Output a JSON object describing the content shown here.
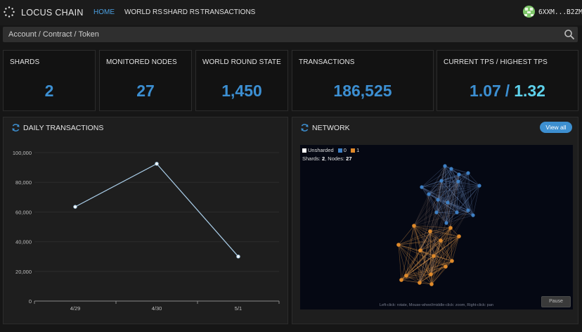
{
  "brand": {
    "name": "LOCUS CHAIN"
  },
  "nav": {
    "items": [
      {
        "label": "HOME",
        "active": true
      },
      {
        "label": "WORLD RS",
        "active": false
      },
      {
        "label": "SHARD RS",
        "active": false
      },
      {
        "label": "TRANSACTIONS",
        "active": false
      }
    ]
  },
  "user": {
    "id": "6XXM...B2ZM"
  },
  "search": {
    "placeholder": "Account / Contract / Token"
  },
  "stats": {
    "shards": {
      "title": "SHARDS",
      "value": "2"
    },
    "nodes": {
      "title": "MONITORED NODES",
      "value": "27"
    },
    "world_round": {
      "title": "WORLD ROUND STATE",
      "value": "1,450"
    },
    "transactions": {
      "title": "TRANSACTIONS",
      "value": "186,525"
    },
    "tps": {
      "title": "CURRENT TPS / HIGHEST TPS",
      "current": "1.07",
      "separator": "/",
      "highest": "1.32"
    }
  },
  "daily_panel": {
    "title": "DAILY TRANSACTIONS"
  },
  "network_panel": {
    "title": "NETWORK",
    "view_all": "View all",
    "legend": [
      "Unsharded",
      "0",
      "1"
    ],
    "legend_colors": [
      "#ffffff",
      "#3d7fc4",
      "#e08a2a"
    ],
    "shards_label": "Shards:",
    "shards_value": "2",
    "nodes_label": "Nodes:",
    "nodes_value": "27",
    "hint": "Left-click: rotate, Mouse-wheel/middle-click: zoom, Right-click: pan",
    "pause": "Pause"
  },
  "chart_data": {
    "type": "line",
    "categories": [
      "4/29",
      "4/30",
      "5/1"
    ],
    "values": [
      63500,
      92500,
      30000
    ],
    "ylim": [
      0,
      100000
    ],
    "yticks": [
      0,
      20000,
      40000,
      60000,
      80000,
      100000
    ],
    "ytick_labels": [
      "0",
      "20,000",
      "40,000",
      "60,000",
      "80,000",
      "100,000"
    ],
    "grid": true,
    "color": "#a9cde8"
  }
}
